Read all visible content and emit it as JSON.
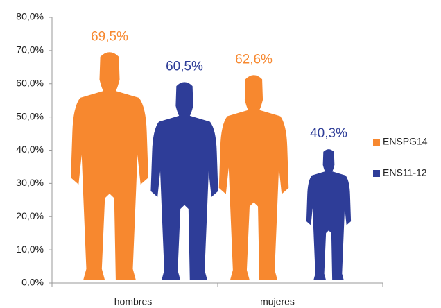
{
  "chart_data": {
    "type": "pictogram",
    "categories": [
      "hombres",
      "mujeres"
    ],
    "series": [
      {
        "name": "ENSPG14",
        "color": "#f7882f",
        "values": [
          69.5,
          62.6
        ],
        "value_labels": [
          "69,5%",
          "62,6%"
        ]
      },
      {
        "name": "ENS11-12",
        "color": "#2e3d98",
        "values": [
          60.5,
          40.3
        ],
        "value_labels": [
          "60,5%",
          "40,3%"
        ]
      }
    ],
    "ylim": [
      0,
      80
    ],
    "yticks": [
      {
        "value": 0,
        "label": "0,0%"
      },
      {
        "value": 10,
        "label": "10,0%"
      },
      {
        "value": 20,
        "label": "20,0%"
      },
      {
        "value": 30,
        "label": "30,0%"
      },
      {
        "value": 40,
        "label": "40,0%"
      },
      {
        "value": 50,
        "label": "50,0%"
      },
      {
        "value": 60,
        "label": "60,0%"
      },
      {
        "value": 70,
        "label": "70,0%"
      },
      {
        "value": 80,
        "label": "80,0%"
      }
    ],
    "legend": "right"
  }
}
